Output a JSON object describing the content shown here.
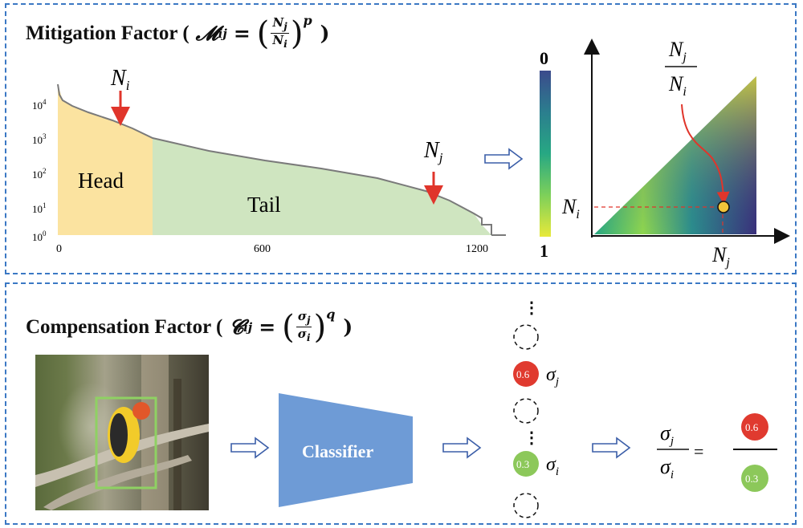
{
  "mitigation": {
    "title": "Mitigation Factor (",
    "symbol": "𝓜",
    "sub": "ij",
    "eq": "=",
    "num": "N",
    "num_sub": "j",
    "den": "N",
    "den_sub": "i",
    "power": "p",
    "close": ")"
  },
  "compensation": {
    "title": "Compensation Factor (",
    "symbol": "𝓒",
    "sub": "ij",
    "eq": "=",
    "num": "σ",
    "num_sub": "j",
    "den": "σ",
    "den_sub": "i",
    "power": "q",
    "close": ")"
  },
  "chart_data": {
    "type": "area",
    "y_scale": "log",
    "x_ticks": [
      "0",
      "600",
      "1200"
    ],
    "y_ticks": [
      "10⁰",
      "10¹",
      "10²",
      "10³",
      "10⁴"
    ],
    "regions": [
      {
        "name": "Head",
        "x_range": [
          0,
          280
        ],
        "color": "#fbe3a0"
      },
      {
        "name": "Tail",
        "x_range": [
          280,
          1200
        ],
        "color": "#cfe5c0"
      }
    ],
    "x": [
      0,
      10,
      30,
      80,
      150,
      280,
      400,
      600,
      800,
      1000,
      1050,
      1100,
      1150,
      1200
    ],
    "y": [
      50000,
      8000,
      6000,
      4000,
      2500,
      1100,
      700,
      200,
      70,
      18,
      12,
      5,
      2,
      1
    ],
    "markers": [
      {
        "label": "N",
        "sub": "i",
        "x": 180
      },
      {
        "label": "N",
        "sub": "j",
        "x": 1080
      }
    ]
  },
  "colorbar": {
    "top_label": "0",
    "bottom_label": "1",
    "colors": [
      "#3b4a8c",
      "#2b7e8e",
      "#27a883",
      "#7dd05a",
      "#e8e93a"
    ]
  },
  "heatmap": {
    "frac_num": "N",
    "frac_num_sub": "j",
    "frac_den": "N",
    "frac_den_sub": "i",
    "y_label": "N",
    "y_label_sub": "i",
    "x_label": "N",
    "x_label_sub": "j",
    "point_color": "#f3c53a"
  },
  "pipeline": {
    "classifier_label": "Classifier",
    "classifier_color": "#6e9bd6",
    "scores": [
      {
        "value": "0.6",
        "symbol": "σ",
        "sub": "j",
        "color": "#e03a2f"
      },
      {
        "value": "0.3",
        "symbol": "σ",
        "sub": "i",
        "color": "#8cc85a"
      }
    ],
    "ratio": {
      "num": "σ",
      "num_sub": "j",
      "den": "σ",
      "den_sub": "i",
      "eq": "=",
      "top_value": "0.6",
      "bottom_value": "0.3"
    }
  }
}
